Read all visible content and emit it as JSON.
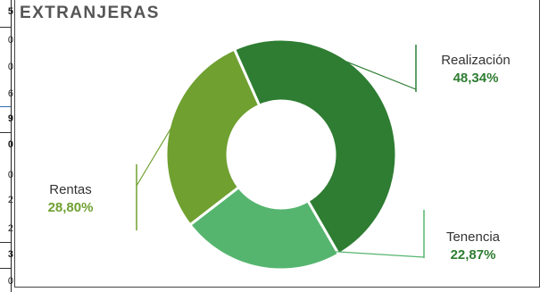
{
  "left_table": {
    "cells": [
      {
        "text": "5",
        "bold": true
      },
      {
        "text": "0",
        "bold": false
      },
      {
        "text": "0",
        "bold": false
      },
      {
        "text": "6",
        "bold": false
      },
      {
        "text": "9",
        "bold": true
      },
      {
        "text": "0",
        "bold": true
      },
      {
        "text": "0",
        "bold": false
      },
      {
        "text": "2",
        "bold": false
      },
      {
        "text": "2",
        "bold": false
      },
      {
        "text": "3",
        "bold": true
      },
      {
        "text": "0",
        "bold": false
      }
    ]
  },
  "chart_data": {
    "type": "pie",
    "title": "EXTRANJERAS",
    "donut": true,
    "slices": [
      {
        "name": "Realización",
        "value": 48.34,
        "value_label": "48,34%",
        "color": "#2e7d32"
      },
      {
        "name": "Tenencia",
        "value": 22.87,
        "value_label": "22,87%",
        "color": "#55b56f"
      },
      {
        "name": "Rentas",
        "value": 28.8,
        "value_label": "28,80%",
        "color": "#6fa030"
      }
    ]
  }
}
